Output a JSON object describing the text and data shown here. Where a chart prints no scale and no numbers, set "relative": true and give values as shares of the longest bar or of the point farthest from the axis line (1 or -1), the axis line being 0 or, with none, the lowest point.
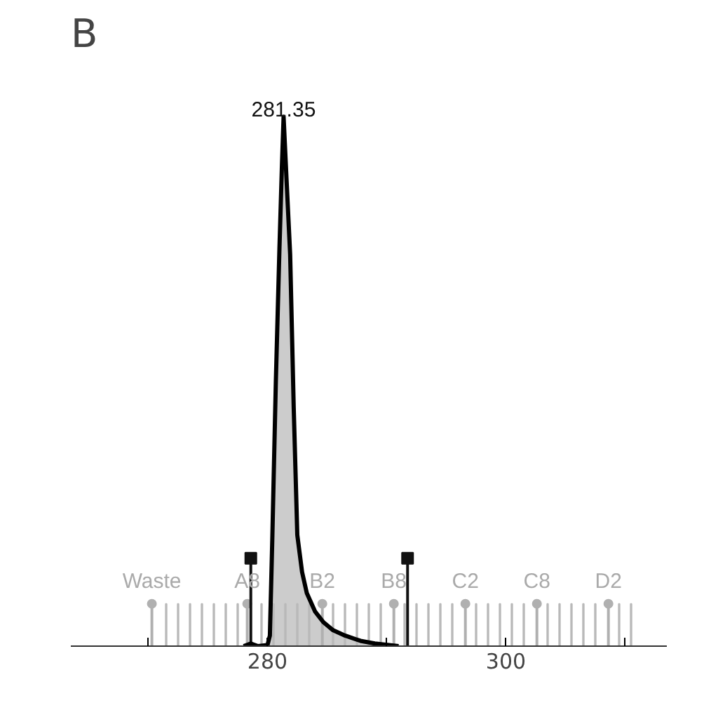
{
  "chart_data": {
    "type": "area",
    "title": "B",
    "relative": true,
    "grid": false,
    "xlim": [
      263.5,
      313.5
    ],
    "xticks": [
      {
        "value": 270,
        "label": null
      },
      280,
      {
        "value": 290,
        "label": null
      },
      300,
      {
        "value": 310,
        "label": null
      }
    ],
    "series": [
      {
        "type": "bar",
        "color": "#b9b9b9",
        "x": [
          271.5,
          272.5,
          273.5,
          274.5,
          275.5,
          276.5,
          277.5,
          279.5,
          280.5,
          281.5,
          282.5,
          283.5,
          285.5,
          286.5,
          287.5,
          288.5,
          289.5,
          291.5,
          292.5,
          293.5,
          294.5,
          295.5,
          297.5,
          298.5,
          299.5,
          300.5,
          301.5,
          303.5,
          304.5,
          305.5,
          306.5,
          307.5,
          309.5,
          310.5
        ],
        "values": [
          0.08,
          0.08,
          0.08,
          0.08,
          0.08,
          0.08,
          0.08,
          0.08,
          0.08,
          0.08,
          0.08,
          0.08,
          0.08,
          0.08,
          0.08,
          0.08,
          0.08,
          0.08,
          0.08,
          0.08,
          0.08,
          0.08,
          0.08,
          0.08,
          0.08,
          0.08,
          0.08,
          0.08,
          0.08,
          0.08,
          0.08,
          0.08,
          0.08,
          0.08
        ]
      },
      {
        "color": "#cccccc",
        "x": [
          278.0,
          278.6,
          279.2,
          280.0,
          280.2,
          280.4,
          280.7,
          281.0,
          281.2,
          281.35,
          281.6,
          281.9,
          282.2,
          282.5,
          282.9,
          283.3,
          284.0,
          284.7,
          285.5,
          286.5,
          287.8,
          289.0,
          291.0
        ],
        "values": [
          0,
          0.005,
          0,
          0.002,
          0.02,
          0.2,
          0.5,
          0.75,
          0.9,
          1,
          0.88,
          0.74,
          0.45,
          0.21,
          0.14,
          0.1,
          0.065,
          0.045,
          0.03,
          0.02,
          0.01,
          0.005,
          0
        ]
      },
      {
        "type": "lollipop",
        "color": "#b0b0b0",
        "marker": "circle",
        "x": [
          270.3,
          278.3,
          284.6,
          290.6,
          296.6,
          302.6,
          308.6
        ],
        "values": [
          0.08,
          0.08,
          0.08,
          0.08,
          0.08,
          0.08,
          0.08
        ]
      },
      {
        "type": "lollipop",
        "color": "#111111",
        "marker": "square",
        "x": [
          278.6,
          291.75
        ],
        "values": [
          0.166,
          0.166
        ]
      }
    ],
    "annotations": [
      {
        "text": "281.35",
        "x": 281.35,
        "y": 1
      },
      {
        "text": "Waste",
        "x": 270.3,
        "y": 0.1
      },
      {
        "text": "A8",
        "x": 278.3,
        "y": 0.1
      },
      {
        "text": "B2",
        "x": 284.6,
        "y": 0.1
      },
      {
        "text": "B8",
        "x": 290.6,
        "y": 0.1
      },
      {
        "text": "C2",
        "x": 296.6,
        "y": 0.1
      },
      {
        "text": "C8",
        "x": 302.6,
        "y": 0.1
      },
      {
        "text": "D2",
        "x": 308.6,
        "y": 0.1
      }
    ]
  }
}
